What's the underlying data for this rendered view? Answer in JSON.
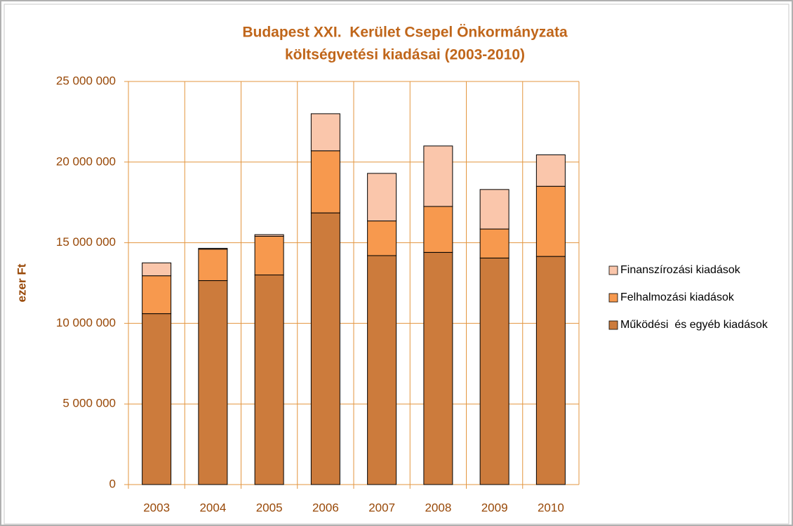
{
  "chart_data": {
    "type": "bar",
    "stacked": true,
    "title": [
      "Budapest XXI.  Kerület Csepel Önkormányzata",
      "költségvetési kiadásai (2003-2010)"
    ],
    "y_label": "ezer Ft",
    "categories": [
      "2003",
      "2004",
      "2005",
      "2006",
      "2007",
      "2008",
      "2009",
      "2010"
    ],
    "series": [
      {
        "name": "Működési  és egyéb kiadások",
        "color": "#cc7b3c",
        "values": [
          10600000,
          12650000,
          13000000,
          16850000,
          14200000,
          14400000,
          14050000,
          14150000
        ]
      },
      {
        "name": "Felhalmozási kiadások",
        "color": "#f7994e",
        "values": [
          2350000,
          1950000,
          2400000,
          3850000,
          2150000,
          2850000,
          1800000,
          4350000
        ]
      },
      {
        "name": "Finanszírozási kiadások",
        "color": "#fac6ab",
        "values": [
          800000,
          50000,
          100000,
          2300000,
          2950000,
          3750000,
          2450000,
          1950000
        ]
      }
    ],
    "ylim": [
      0,
      25000000
    ],
    "yticks": [
      0,
      {
        "value": 5000000,
        "label": "5 000 000"
      },
      {
        "value": 10000000,
        "label": "10 000 000"
      },
      {
        "value": 15000000,
        "label": "15 000 000"
      },
      {
        "value": 20000000,
        "label": "20 000 000"
      },
      {
        "value": 25000000,
        "label": "25 000 000"
      }
    ],
    "grid": true,
    "legend": "right"
  }
}
